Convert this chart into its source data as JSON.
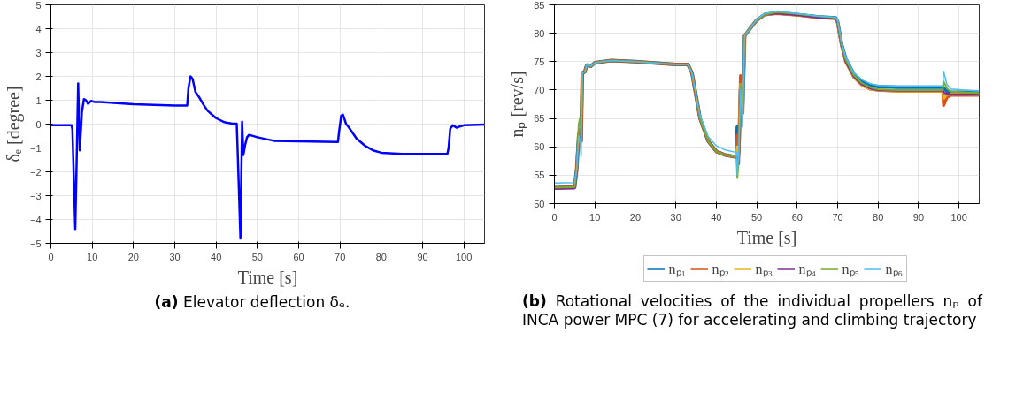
{
  "chart_data": [
    {
      "type": "line",
      "xlabel": "Time [s]",
      "ylabel": "δₑ [degree]",
      "xlim": [
        0,
        105
      ],
      "ylim": [
        -5,
        5
      ],
      "xticks": [
        0,
        10,
        20,
        30,
        40,
        50,
        60,
        70,
        80,
        90,
        100
      ],
      "yticks": [
        -5,
        -4,
        -3,
        -2,
        -1,
        0,
        1,
        2,
        3,
        4,
        5
      ],
      "grid": true,
      "legend": false,
      "x": [
        0,
        5,
        5.2,
        5.9,
        6.3,
        6.6,
        7.0,
        7.5,
        8,
        8.5,
        9,
        9.7,
        10.5,
        12,
        20,
        30,
        33,
        33.3,
        33.8,
        34.3,
        35,
        36,
        37,
        38,
        40,
        42,
        44,
        45,
        45.3,
        45.9,
        46.3,
        46.6,
        47,
        47.5,
        48,
        50,
        54,
        60,
        69.5,
        69.8,
        70.3,
        70.7,
        71.5,
        72,
        74,
        76,
        78,
        80,
        85,
        96,
        96.3,
        96.7,
        97.3,
        98.3,
        99,
        100,
        105
      ],
      "series": [
        {
          "color": "#0000ff",
          "values": [
            -0.05,
            -0.05,
            -0.2,
            -4.4,
            -1,
            1.7,
            -1.1,
            0.5,
            1.05,
            1.0,
            0.85,
            0.97,
            0.93,
            0.93,
            0.83,
            0.78,
            0.78,
            1.5,
            2.0,
            1.9,
            1.35,
            1.1,
            0.8,
            0.55,
            0.25,
            0.08,
            0.02,
            0.02,
            -1.5,
            -4.8,
            0.1,
            -1.3,
            -0.9,
            -0.55,
            -0.45,
            -0.55,
            -0.7,
            -0.72,
            -0.75,
            -0.3,
            0.35,
            0.4,
            0.0,
            -0.1,
            -0.6,
            -0.9,
            -1.1,
            -1.2,
            -1.25,
            -1.25,
            -1.0,
            -0.2,
            -0.05,
            -0.15,
            -0.1,
            -0.05,
            -0.02
          ]
        }
      ],
      "annotations": [
        "(a) Elevator deflection δₑ."
      ]
    },
    {
      "type": "line",
      "xlabel": "Time [s]",
      "ylabel": "nₚ [rev/s]",
      "xlim": [
        0,
        105
      ],
      "ylim": [
        50,
        85
      ],
      "xticks": [
        0,
        10,
        20,
        30,
        40,
        50,
        60,
        70,
        80,
        90,
        100
      ],
      "yticks": [
        50,
        55,
        60,
        65,
        70,
        75,
        80,
        85
      ],
      "grid": true,
      "legend": "bottom",
      "x": [
        0,
        5,
        5.5,
        6,
        6.3,
        6.6,
        6.9,
        7.5,
        8,
        8.5,
        9,
        10,
        14,
        20,
        30,
        33,
        34,
        35,
        36,
        38,
        40,
        42,
        45,
        45.2,
        45.6,
        46,
        46.5,
        47,
        48,
        50,
        52,
        55,
        60,
        65,
        69.5,
        70,
        71,
        72,
        74,
        76,
        78,
        80,
        85,
        96,
        96.2,
        97,
        98,
        105
      ],
      "series": [
        {
          "name": "nₚ₁",
          "color": "#0072bd",
          "values": [
            52.8,
            52.9,
            56,
            62,
            63,
            61,
            73,
            73.2,
            74.4,
            74.4,
            74.2,
            74.8,
            75.2,
            75,
            74.5,
            74.5,
            73,
            69,
            65,
            61,
            59.2,
            58.6,
            58.2,
            63.5,
            60,
            70,
            66,
            79.5,
            80.5,
            82.3,
            83.3,
            83.6,
            83.3,
            82.9,
            82.7,
            82,
            78,
            75.5,
            72.8,
            71.5,
            70.9,
            70.6,
            70.5,
            70.5,
            70.3,
            69.8,
            69.6,
            69.6
          ]
        },
        {
          "name": "nₚ₂",
          "color": "#d95319",
          "values": [
            52.8,
            52.9,
            56,
            62,
            63,
            61,
            73,
            73.2,
            74.4,
            74.4,
            74.2,
            74.8,
            75.2,
            75,
            74.5,
            74.5,
            73,
            69,
            65,
            61,
            59.2,
            58.6,
            58.2,
            62,
            59,
            72.5,
            66,
            79.5,
            80.5,
            82.3,
            83.3,
            83.5,
            83.2,
            82.8,
            82.6,
            81.9,
            77.8,
            75,
            72.3,
            70.9,
            70.2,
            70.0,
            69.8,
            69.8,
            67.3,
            68.7,
            69.1,
            69.1
          ]
        },
        {
          "name": "nₚ₃",
          "color": "#edb120",
          "values": [
            null,
            null,
            null,
            null,
            null,
            null,
            null,
            null,
            null,
            null,
            null,
            null,
            null,
            null,
            null,
            null,
            null,
            null,
            null,
            null,
            null,
            null,
            58.2,
            60,
            58.5,
            71,
            66,
            79.5,
            80.5,
            82.3,
            83.3,
            83.5,
            83.2,
            82.8,
            82.6,
            81.9,
            77.8,
            75,
            72.3,
            70.9,
            70.2,
            70.0,
            69.8,
            69.8,
            68.5,
            69.2,
            69.3,
            69.2
          ]
        },
        {
          "name": "nₚ₄",
          "color": "#7e2f8e",
          "values": [
            52.6,
            52.7,
            56,
            null,
            null,
            null,
            null,
            null,
            null,
            null,
            null,
            null,
            null,
            null,
            null,
            null,
            null,
            null,
            null,
            null,
            null,
            null,
            58.2,
            58,
            57,
            70,
            66,
            79.5,
            80.5,
            82.3,
            83.3,
            83.5,
            83.2,
            82.8,
            82.6,
            81.9,
            77.8,
            75,
            72.4,
            71,
            70.3,
            70.0,
            69.9,
            69.9,
            69.5,
            69.4,
            69.2,
            69.2
          ]
        },
        {
          "name": "nₚ₅",
          "color": "#77ac30",
          "values": [
            52.8,
            52.9,
            56,
            64,
            65,
            62,
            73,
            73.2,
            74.4,
            74.4,
            74.2,
            74.8,
            75.2,
            75,
            74.5,
            74.5,
            73,
            69,
            65,
            61,
            59.2,
            58.6,
            58.2,
            54.5,
            58,
            71,
            66,
            79.5,
            80.5,
            82.3,
            83.3,
            83.7,
            83.4,
            83.0,
            82.8,
            82.1,
            78,
            75.3,
            72.6,
            71.2,
            70.5,
            70.1,
            70.0,
            70.0,
            71.5,
            70.3,
            69.7,
            69.5
          ]
        },
        {
          "name": "nₚ₆",
          "color": "#4dbeee",
          "values": [
            53.6,
            53.7,
            56,
            62,
            61,
            58.3,
            73,
            73.2,
            74.4,
            74.4,
            74.2,
            74.8,
            75.2,
            75,
            74.5,
            74.5,
            73,
            69.2,
            65.5,
            61.8,
            60.2,
            59.5,
            59,
            55,
            60,
            70,
            63.5,
            79.5,
            80.5,
            82.4,
            83.5,
            83.9,
            83.5,
            83.0,
            82.8,
            82.2,
            78.3,
            75.8,
            73,
            71.8,
            71.1,
            70.8,
            70.7,
            70.7,
            73.3,
            71,
            70.2,
            69.8
          ]
        }
      ],
      "annotations": [
        "(b) Rotational velocities of the individual propellers nₚ of INCA power MPC (7) for accelerating and climbing trajectory"
      ]
    }
  ]
}
